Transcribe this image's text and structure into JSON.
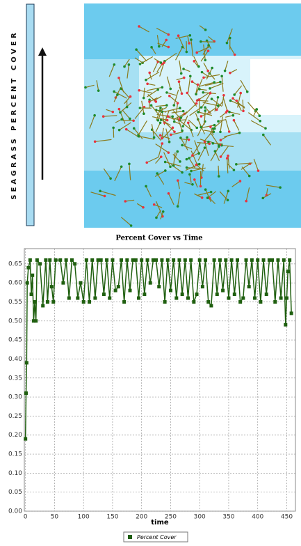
{
  "figure": {
    "bar_label": "SEAGRASS PERCENT COVER"
  },
  "chart_data": {
    "type": "line",
    "title": "Percent Cover vs Time",
    "x_label": "time",
    "x": [
      0,
      1,
      2,
      3,
      5,
      8,
      10,
      12,
      14,
      16,
      18,
      20,
      25,
      30,
      35,
      38,
      42,
      45,
      48,
      52,
      60,
      65,
      70,
      75,
      80,
      85,
      90,
      95,
      100,
      105,
      110,
      115,
      120,
      125,
      130,
      135,
      140,
      145,
      150,
      155,
      160,
      165,
      170,
      175,
      180,
      185,
      190,
      195,
      200,
      205,
      210,
      215,
      220,
      225,
      230,
      235,
      240,
      245,
      250,
      255,
      260,
      265,
      270,
      275,
      280,
      285,
      290,
      295,
      300,
      305,
      310,
      315,
      320,
      325,
      330,
      335,
      340,
      345,
      350,
      355,
      360,
      365,
      370,
      375,
      380,
      385,
      390,
      395,
      400,
      405,
      410,
      415,
      420,
      425,
      430,
      435,
      440,
      445,
      448,
      450,
      452,
      455,
      458
    ],
    "series": [
      {
        "name": "Percent Cover",
        "color": "#1f5f0f",
        "values": [
          0.19,
          0.31,
          0.39,
          0.6,
          0.64,
          0.66,
          0.57,
          0.62,
          0.5,
          0.55,
          0.5,
          0.66,
          0.65,
          0.54,
          0.66,
          0.55,
          0.66,
          0.59,
          0.55,
          0.66,
          0.66,
          0.6,
          0.66,
          0.56,
          0.66,
          0.65,
          0.56,
          0.6,
          0.55,
          0.66,
          0.55,
          0.66,
          0.56,
          0.66,
          0.66,
          0.57,
          0.66,
          0.56,
          0.66,
          0.58,
          0.59,
          0.66,
          0.55,
          0.66,
          0.58,
          0.66,
          0.66,
          0.56,
          0.66,
          0.57,
          0.66,
          0.6,
          0.66,
          0.66,
          0.59,
          0.66,
          0.55,
          0.66,
          0.58,
          0.66,
          0.56,
          0.66,
          0.57,
          0.66,
          0.56,
          0.66,
          0.55,
          0.57,
          0.66,
          0.59,
          0.66,
          0.55,
          0.54,
          0.66,
          0.57,
          0.66,
          0.58,
          0.66,
          0.56,
          0.66,
          0.57,
          0.66,
          0.55,
          0.56,
          0.66,
          0.59,
          0.66,
          0.56,
          0.66,
          0.55,
          0.66,
          0.57,
          0.66,
          0.66,
          0.55,
          0.66,
          0.56,
          0.66,
          0.49,
          0.56,
          0.63,
          0.66,
          0.52
        ]
      }
    ],
    "xlim": [
      -2,
      465
    ],
    "ylim": [
      0,
      0.69
    ],
    "xticks": [
      0,
      50,
      100,
      150,
      200,
      250,
      300,
      350,
      400,
      450
    ],
    "yticks": [
      {
        "value": 0,
        "label": "0.00"
      },
      0.05,
      {
        "value": 0.1,
        "label": "0.10"
      },
      0.15,
      {
        "value": 0.2,
        "label": "0.20"
      },
      0.25,
      {
        "value": 0.3,
        "label": "0.30"
      },
      0.35,
      {
        "value": 0.4,
        "label": "0.40"
      },
      0.45,
      {
        "value": 0.5,
        "label": "0.50"
      },
      0.55,
      {
        "value": 0.6,
        "label": "0.60"
      },
      0.65
    ],
    "grid": true,
    "legend": "bottom"
  }
}
